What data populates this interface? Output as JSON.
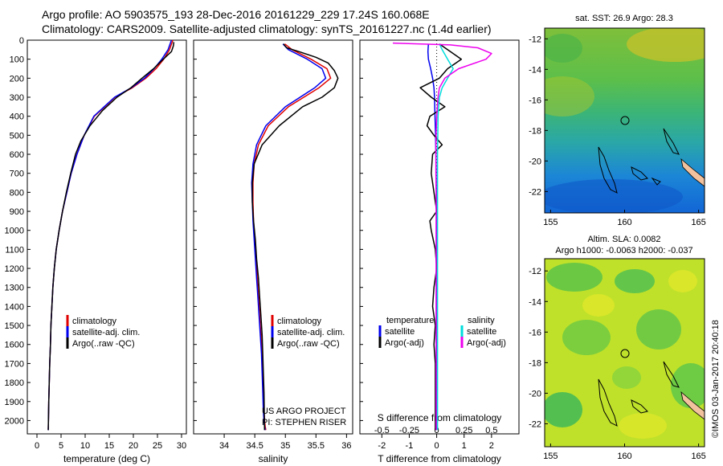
{
  "header": {
    "line1": "Argo profile: AO 5903575_193 28-Dec-2016 20161229_229 17.24S 160.068E",
    "line2": "Climatology: CARS2009. Satellite-adjusted climatology: synTS_20161227.nc (1.4d earlier)"
  },
  "colors": {
    "climatology": "#e00000",
    "satellite": "#0000ee",
    "argo": "#000000",
    "cyan": "#00dddd",
    "magenta": "#ee00ee"
  },
  "credits": {
    "project": "US ARGO PROJECT",
    "pi": "PI: STEPHEN RISER",
    "imos": "©IMOS 03-Jan-2017 20:40:18"
  },
  "maps": {
    "sst_title": "sat. SST: 26.9 Argo: 28.3",
    "sla_title_1": "Altim. SLA: 0.0082",
    "sla_title_2": "Argo h1000: -0.0063 h2000: -0.037",
    "lon_ticks": [
      "155",
      "160",
      "165"
    ],
    "lat_ticks": [
      "-12",
      "-14",
      "-16",
      "-18",
      "-20",
      "-22"
    ]
  },
  "chart_data": [
    {
      "type": "line",
      "title": "",
      "xlabel": "temperature (deg C)",
      "ylabel": "",
      "xlim": [
        -2,
        31
      ],
      "ylim": [
        2070,
        0
      ],
      "xticks": [
        0,
        5,
        10,
        15,
        20,
        25,
        30
      ],
      "yticks": [
        0,
        100,
        200,
        300,
        400,
        500,
        600,
        700,
        800,
        900,
        1000,
        1100,
        1200,
        1300,
        1400,
        1500,
        1600,
        1700,
        1800,
        1900,
        2000
      ],
      "legend": [
        "climatology",
        "satellite-adj. clim.",
        "Argo(..raw -QC)"
      ],
      "series": [
        {
          "name": "climatology",
          "color": "#e00000",
          "x": [
            28.2,
            27.5,
            26.3,
            24.7,
            22.6,
            19.8,
            16.2,
            11.9,
            9.8,
            8.3,
            7.1,
            6.2,
            5.3,
            4.6,
            4.0,
            3.6,
            3.3,
            3.1,
            2.9,
            2.8,
            2.65,
            2.55,
            2.45,
            2.35
          ],
          "y": [
            0,
            50,
            100,
            150,
            200,
            250,
            300,
            400,
            500,
            600,
            700,
            800,
            900,
            1000,
            1100,
            1200,
            1300,
            1400,
            1500,
            1600,
            1700,
            1800,
            1900,
            2050
          ]
        },
        {
          "name": "satellite-adj. clim.",
          "color": "#0000ee",
          "x": [
            27.9,
            27.2,
            25.9,
            24.3,
            22.3,
            19.6,
            16.1,
            11.8,
            9.8,
            8.3,
            7.1,
            6.2,
            5.3,
            4.6,
            4.0,
            3.6,
            3.3,
            3.1,
            2.9,
            2.8,
            2.65,
            2.55,
            2.45,
            2.35
          ],
          "y": [
            0,
            50,
            100,
            150,
            200,
            250,
            300,
            400,
            500,
            600,
            700,
            800,
            900,
            1000,
            1100,
            1200,
            1300,
            1400,
            1500,
            1600,
            1700,
            1800,
            1900,
            2050
          ]
        },
        {
          "name": "Argo(..raw -QC)",
          "color": "#000000",
          "x": [
            28.4,
            28.3,
            27.9,
            26.2,
            24.2,
            21.8,
            19.5,
            16.6,
            13.6,
            11.0,
            9.1,
            8.0,
            7.0,
            6.1,
            5.3,
            4.6,
            4.0,
            3.6,
            3.3,
            3.1,
            2.9,
            2.8,
            2.65,
            2.55,
            2.45,
            2.35
          ],
          "y": [
            10,
            30,
            60,
            100,
            150,
            200,
            250,
            300,
            370,
            450,
            530,
            600,
            700,
            800,
            900,
            1000,
            1100,
            1200,
            1300,
            1400,
            1500,
            1600,
            1700,
            1800,
            1900,
            2050
          ]
        }
      ]
    },
    {
      "type": "line",
      "title": "",
      "xlabel": "salinity",
      "ylabel": "",
      "xlim": [
        33.5,
        36.1
      ],
      "ylim": [
        2070,
        0
      ],
      "xticks": [
        34,
        34.5,
        35,
        35.5,
        36
      ],
      "legend": [
        "climatology",
        "satellite-adj. clim.",
        "Argo(..raw -QC)"
      ],
      "series": [
        {
          "name": "climatology",
          "color": "#e00000",
          "x": [
            34.99,
            35.11,
            35.42,
            35.68,
            35.74,
            35.55,
            35.05,
            34.72,
            34.56,
            34.49,
            34.47,
            34.47,
            34.48,
            34.5,
            34.52,
            34.54,
            34.56,
            34.58,
            34.6,
            34.62,
            34.63,
            34.64,
            34.65,
            34.66,
            34.67,
            34.68
          ],
          "y": [
            20,
            50,
            100,
            150,
            200,
            250,
            350,
            450,
            550,
            650,
            750,
            850,
            950,
            1050,
            1150,
            1250,
            1350,
            1450,
            1550,
            1650,
            1750,
            1850,
            1950,
            2000,
            2030,
            2050
          ]
        },
        {
          "name": "satellite-adj. clim.",
          "color": "#0000ee",
          "x": [
            34.96,
            35.05,
            35.36,
            35.6,
            35.66,
            35.48,
            35.0,
            34.68,
            34.53,
            34.47,
            34.45,
            34.46,
            34.47,
            34.49,
            34.51,
            34.53,
            34.55,
            34.57,
            34.59,
            34.61,
            34.62,
            34.63,
            34.64,
            34.65,
            34.66,
            34.67
          ],
          "y": [
            20,
            50,
            100,
            150,
            200,
            250,
            350,
            450,
            550,
            650,
            750,
            850,
            950,
            1050,
            1150,
            1250,
            1350,
            1450,
            1550,
            1650,
            1750,
            1850,
            1950,
            2000,
            2030,
            2050
          ]
        },
        {
          "name": "Argo(..raw -QC)",
          "color": "#000000",
          "x": [
            34.97,
            35.02,
            35.22,
            35.5,
            35.7,
            35.8,
            35.86,
            35.8,
            35.6,
            35.28,
            34.9,
            34.62,
            34.49,
            34.46,
            34.46,
            34.48,
            34.51,
            34.53,
            34.56,
            34.58,
            34.6,
            34.62,
            34.63,
            34.64,
            34.65,
            34.66
          ],
          "y": [
            20,
            40,
            60,
            90,
            120,
            160,
            200,
            250,
            300,
            350,
            450,
            550,
            650,
            750,
            850,
            950,
            1050,
            1150,
            1250,
            1350,
            1450,
            1550,
            1650,
            1750,
            1850,
            2050
          ]
        }
      ]
    },
    {
      "type": "line",
      "title": "",
      "xlabel": "T difference from climatology",
      "xlabel_top": "S difference from climatology",
      "ylabel": "",
      "xlim": [
        -2.8,
        3.0
      ],
      "ylim": [
        2070,
        0
      ],
      "xticks": [
        -2,
        -1,
        0,
        1,
        2
      ],
      "xticks_top": [
        -0.5,
        -0.25,
        0,
        0.25,
        0.5
      ],
      "legend_title_left": "temperature",
      "legend_title_right": "salinity",
      "legend": [
        "satellite",
        "Argo(-adj)",
        "satellite",
        "Argo(-adj)"
      ],
      "series": [
        {
          "name": "temperature satellite",
          "color": "#0000ee",
          "x": [
            -0.3,
            -0.32,
            -0.3,
            -0.22,
            -0.15,
            -0.1,
            -0.08,
            -0.06,
            -0.04,
            -0.03,
            -0.02,
            -0.01,
            -0.01,
            -0.01,
            -0.01,
            -0.01,
            -0.01,
            -0.01
          ],
          "y": [
            20,
            60,
            100,
            150,
            200,
            250,
            300,
            400,
            500,
            600,
            700,
            800,
            1000,
            1200,
            1400,
            1600,
            1800,
            2050
          ]
        },
        {
          "name": "temperature Argo(-adj)",
          "color": "#000000",
          "x": [
            0.1,
            0.5,
            0.9,
            0.4,
            0.1,
            -0.6,
            -0.2,
            0.3,
            -0.25,
            -0.35,
            -0.1,
            0.2,
            -0.15,
            -0.2,
            -0.1,
            0.0,
            -0.25,
            -0.2,
            -0.05,
            0.0,
            -0.1,
            -0.15,
            -0.05,
            -0.1,
            -0.05,
            -0.05,
            -0.05
          ],
          "y": [
            20,
            60,
            100,
            150,
            200,
            250,
            300,
            350,
            400,
            450,
            500,
            550,
            600,
            700,
            800,
            900,
            950,
            1000,
            1100,
            1200,
            1300,
            1400,
            1500,
            1600,
            1700,
            1800,
            2050
          ]
        },
        {
          "name": "salinity satellite",
          "color": "#00dddd",
          "x": [
            0.1,
            0.2,
            0.4,
            0.6,
            0.4,
            0.2,
            0.1,
            0.05,
            0.04,
            0.03,
            0.03,
            0.03,
            0.03,
            0.03,
            0.03,
            0.03
          ],
          "y": [
            20,
            50,
            100,
            150,
            200,
            250,
            300,
            400,
            500,
            600,
            800,
            1000,
            1200,
            1500,
            1800,
            2050
          ]
        },
        {
          "name": "salinity Argo(-adj)",
          "color": "#ee00ee",
          "x": [
            -1.6,
            0.5,
            1.5,
            2.0,
            1.8,
            0.8,
            0.3,
            0.1,
            0.05,
            0.0,
            -0.02,
            -0.03,
            -0.03,
            -0.02,
            -0.02,
            -0.02,
            -0.02
          ],
          "y": [
            15,
            25,
            40,
            70,
            100,
            150,
            200,
            250,
            300,
            400,
            500,
            600,
            700,
            800,
            1000,
            1500,
            2050
          ]
        }
      ]
    }
  ]
}
